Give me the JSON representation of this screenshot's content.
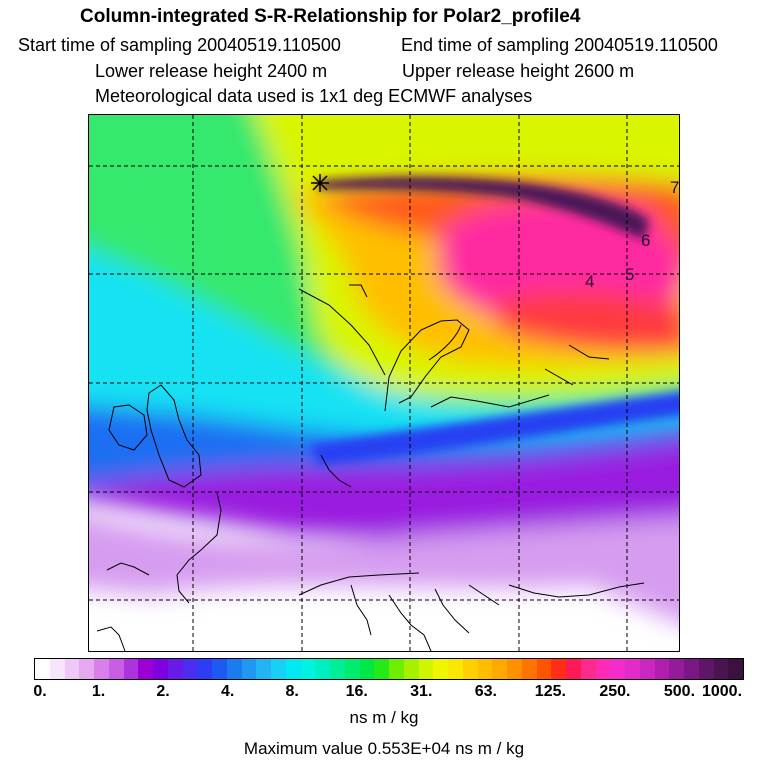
{
  "header": {
    "title": "Column-integrated S-R-Relationship for Polar2_profile4",
    "start_time": "Start time of sampling 20040519.110500",
    "end_time": "End time of sampling 20040519.110500",
    "lower_release": "Lower release height 2400 m",
    "upper_release": "Upper release height 2600 m",
    "met_data": "Meteorological data used is 1x1 deg ECMWF analyses"
  },
  "map": {
    "contour_labels": [
      "7",
      "6",
      "5",
      "4"
    ],
    "release_marker": "release-point"
  },
  "colorbar": {
    "ticks": [
      "0.",
      "1.",
      "2.",
      "4.",
      "8.",
      "16.",
      "31.",
      "63.",
      "125.",
      "250.",
      "500.",
      "1000."
    ],
    "colors": [
      "#ffffff",
      "#f7e6fb",
      "#efc9f5",
      "#e6a8ef",
      "#d97fe9",
      "#c85ee3",
      "#ad33dc",
      "#9a00d6",
      "#7f00e0",
      "#6a1ae6",
      "#4f2df0",
      "#2f3cf5",
      "#1d5af2",
      "#1b7cf0",
      "#1f98f2",
      "#22b4f3",
      "#18d0f5",
      "#00e8f2",
      "#00f3e0",
      "#00efc0",
      "#00ee9a",
      "#00ec6e",
      "#00e844",
      "#25ea1a",
      "#6fee00",
      "#a7f000",
      "#d0f500",
      "#eef700",
      "#fbe800",
      "#ffd000",
      "#ffbd00",
      "#ffa800",
      "#ff9000",
      "#ff7400",
      "#ff5500",
      "#ff2e14",
      "#ff1a55",
      "#ff2a8f",
      "#ff2bb7",
      "#f52cc9",
      "#e22bc9",
      "#cc26c0",
      "#b01eb0",
      "#941c9b",
      "#7a1786",
      "#5e1668",
      "#4a1450",
      "#3b123e"
    ],
    "units": "ns m / kg"
  },
  "max_value": "Maximum value  0.553E+04 ns m / kg"
}
